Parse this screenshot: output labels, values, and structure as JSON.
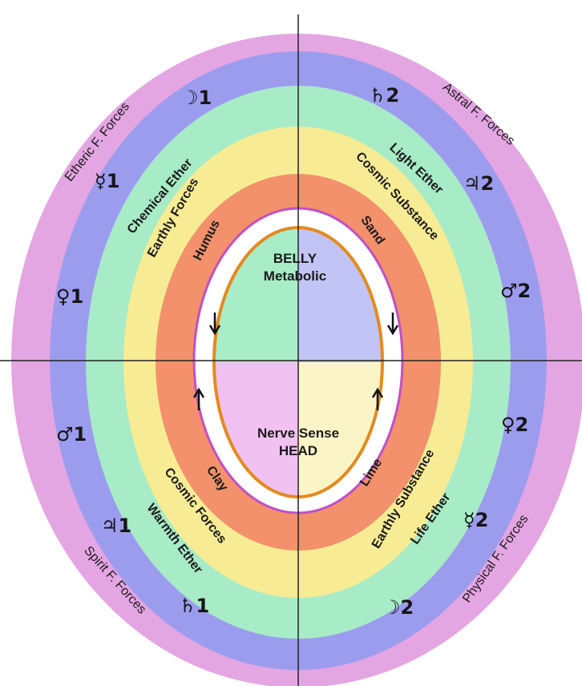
{
  "colors": {
    "etheric_band": "#e4a6e2",
    "planet_band": "#9c9cef",
    "ether_band": "#a8ebc7",
    "forces_band": "#f7ec94",
    "soil_band": "#f2916b",
    "white_ring": "#ffffff",
    "magenta_line": "#c050c8",
    "orange_loop": "#e48a1e",
    "quad_top_left": "#a8edc8",
    "quad_top_right": "#c2c4f5",
    "quad_bottom_left": "#f1c2f1",
    "quad_bottom_right": "#fbf4c6",
    "axis": "#222222"
  },
  "center": {
    "top_line1": "BELLY",
    "top_line2": "Metabolic",
    "bottom_line1": "Nerve Sense",
    "bottom_line2": "HEAD"
  },
  "outer_labels": {
    "top_left": "Etheric F. Forces",
    "top_right": "Astral F. Forces",
    "bottom_left": "Spirit F. Forces",
    "bottom_right": "Physical F. Forces"
  },
  "planets": {
    "moon_1": "☽1",
    "mercury_1": "☿1",
    "venus_1": "♀1",
    "mars_1": "♂1",
    "jupiter_1": "♃1",
    "saturn_1": "♄1",
    "saturn_2": "♄2",
    "jupiter_2": "♃2",
    "mars_2": "♂2",
    "venus_2": "♀2",
    "mercury_2": "☿2",
    "moon_2": "☽2"
  },
  "ethers": {
    "chemical": "Chemical Ether",
    "light": "Light Ether",
    "warmth": "Warmth Ether",
    "life": "Life Ether"
  },
  "forces": {
    "earthly_forces": "Earthly Forces",
    "cosmic_substance": "Cosmic Substance",
    "cosmic_forces": "Cosmic Forces",
    "earthly_substance": "Earthly Substance"
  },
  "soils": {
    "humus": "Humus",
    "sand": "Sand",
    "clay": "Clay",
    "lime": "Lime"
  }
}
